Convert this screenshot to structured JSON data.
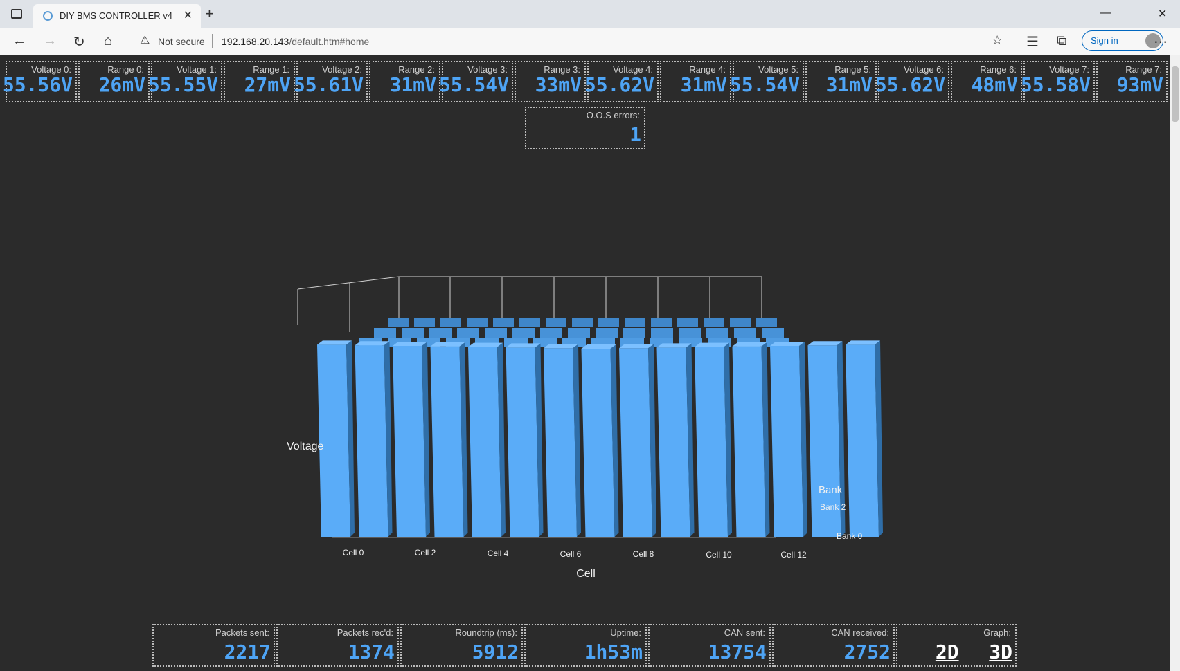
{
  "browser": {
    "tab_title": "DIY BMS CONTROLLER v4",
    "security": "Not secure",
    "url_host": "192.168.20.143",
    "url_path": "/default.htm#home",
    "signin_label": "Sign in"
  },
  "header_stats": [
    {
      "label": "Voltage 0:",
      "value": "55.56V"
    },
    {
      "label": "Range 0:",
      "value": "26mV"
    },
    {
      "label": "Voltage 1:",
      "value": "55.55V"
    },
    {
      "label": "Range 1:",
      "value": "27mV"
    },
    {
      "label": "Voltage 2:",
      "value": "55.61V"
    },
    {
      "label": "Range 2:",
      "value": "31mV"
    },
    {
      "label": "Voltage 3:",
      "value": "55.54V"
    },
    {
      "label": "Range 3:",
      "value": "33mV"
    },
    {
      "label": "Voltage 4:",
      "value": "55.62V"
    },
    {
      "label": "Range 4:",
      "value": "31mV"
    },
    {
      "label": "Voltage 5:",
      "value": "55.54V"
    },
    {
      "label": "Range 5:",
      "value": "31mV"
    },
    {
      "label": "Voltage 6:",
      "value": "55.62V"
    },
    {
      "label": "Range 6:",
      "value": "48mV"
    },
    {
      "label": "Voltage 7:",
      "value": "55.58V"
    },
    {
      "label": "Range 7:",
      "value": "93mV"
    }
  ],
  "oos": {
    "label": "O.O.S errors:",
    "value": "1"
  },
  "footer_stats": [
    {
      "label": "Packets sent:",
      "value": "2217"
    },
    {
      "label": "Packets rec'd:",
      "value": "1374"
    },
    {
      "label": "Roundtrip (ms):",
      "value": "5912"
    },
    {
      "label": "Uptime:",
      "value": "1h53m"
    },
    {
      "label": "CAN sent:",
      "value": "13754"
    },
    {
      "label": "CAN received:",
      "value": "2752"
    }
  ],
  "graph": {
    "label": "Graph:",
    "opt_2d": "2D",
    "opt_3d": "3D"
  },
  "colors": {
    "bar": "#5aacf8",
    "accent": "#4ea4f5",
    "background": "#2b2b2b"
  },
  "chart_data": {
    "type": "bar",
    "xlabel": "Cell",
    "ylabel": "Voltage",
    "zlabel": "Bank",
    "x_tick_labels": [
      "Cell 0",
      "Cell 2",
      "Cell 4",
      "Cell 6",
      "Cell 8",
      "Cell 10",
      "Cell 12"
    ],
    "z_tick_labels": [
      "Bank 0",
      "Bank 2"
    ]
  }
}
